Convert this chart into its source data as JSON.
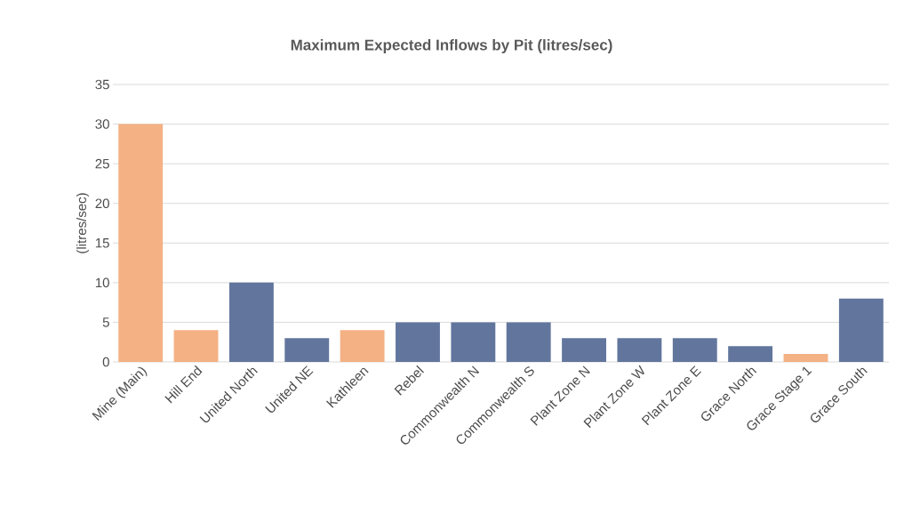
{
  "chart_data": {
    "type": "bar",
    "title": "Maximum Expected Inflows by Pit (litres/sec)",
    "ylabel": "(litres/sec)",
    "categories": [
      "Mine (Main)",
      "Hill End",
      "United North",
      "United NE",
      "Kathleen",
      "Rebel",
      "Commonwealth N",
      "Commonwealth S",
      "Plant Zone N",
      "Plant Zone W",
      "Plant Zone E",
      "Grace North",
      "Grace Stage 1",
      "Grace South"
    ],
    "values": [
      30,
      4,
      10,
      3,
      4,
      5,
      5,
      5,
      3,
      3,
      3,
      2,
      1,
      8
    ],
    "colors": [
      "#f4b183",
      "#f4b183",
      "#62769d",
      "#62769d",
      "#f4b183",
      "#62769d",
      "#62769d",
      "#62769d",
      "#62769d",
      "#62769d",
      "#62769d",
      "#62769d",
      "#f4b183",
      "#62769d"
    ],
    "ylim": [
      0,
      35
    ],
    "yticks": [
      0,
      5,
      10,
      15,
      20,
      25,
      30,
      35
    ],
    "grid": "y"
  }
}
